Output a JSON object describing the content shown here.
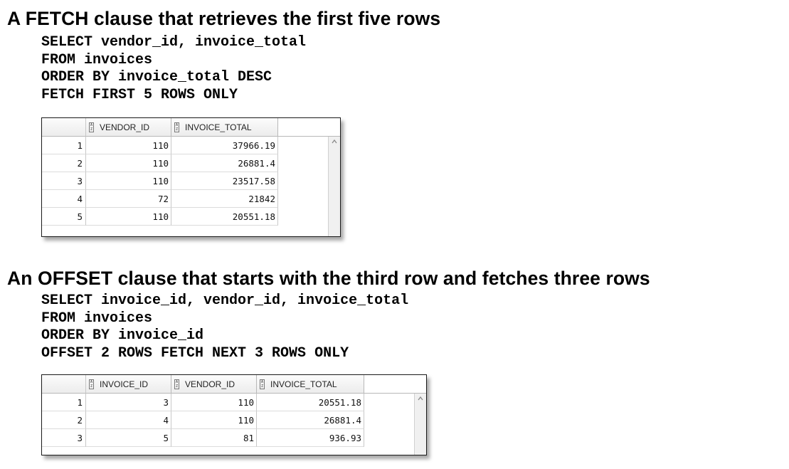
{
  "section1": {
    "heading": "A FETCH clause that retrieves the first five rows",
    "code": [
      "SELECT vendor_id, invoice_total",
      "FROM invoices",
      "ORDER BY invoice_total DESC",
      "FETCH FIRST 5 ROWS ONLY"
    ],
    "grid": {
      "columns": [
        "VENDOR_ID",
        "INVOICE_TOTAL"
      ],
      "rows": [
        {
          "num": "1",
          "cells": [
            "110",
            "37966.19"
          ]
        },
        {
          "num": "2",
          "cells": [
            "110",
            "26881.4"
          ]
        },
        {
          "num": "3",
          "cells": [
            "110",
            "23517.58"
          ]
        },
        {
          "num": "4",
          "cells": [
            "72",
            "21842"
          ]
        },
        {
          "num": "5",
          "cells": [
            "110",
            "20551.18"
          ]
        }
      ]
    }
  },
  "section2": {
    "heading": "An OFFSET clause that starts with the third row and fetches three rows",
    "code": [
      "SELECT invoice_id, vendor_id, invoice_total",
      "FROM invoices",
      "ORDER BY invoice_id",
      "OFFSET 2 ROWS FETCH NEXT 3 ROWS ONLY"
    ],
    "grid": {
      "columns": [
        "INVOICE_ID",
        "VENDOR_ID",
        "INVOICE_TOTAL"
      ],
      "rows": [
        {
          "num": "1",
          "cells": [
            "3",
            "110",
            "20551.18"
          ]
        },
        {
          "num": "2",
          "cells": [
            "4",
            "110",
            "26881.4"
          ]
        },
        {
          "num": "3",
          "cells": [
            "5",
            "81",
            "936.93"
          ]
        }
      ]
    }
  },
  "icons": {
    "sort": "sort-az-icon",
    "scroll_up": "scroll-up-arrow-icon"
  }
}
